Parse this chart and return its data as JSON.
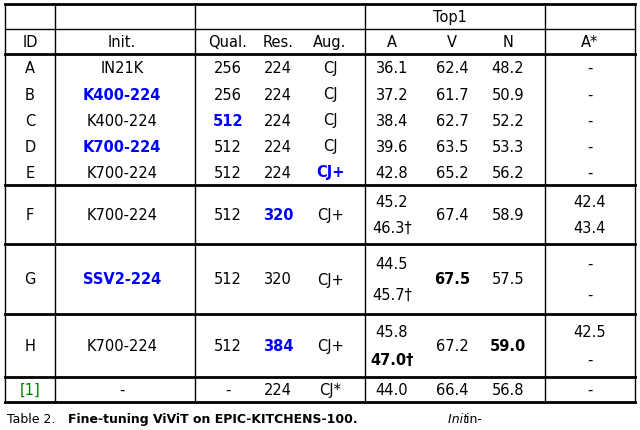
{
  "figsize": [
    6.4,
    4.31
  ],
  "dpi": 100,
  "blue": "#0000FF",
  "black": "#000000",
  "green": "#008000",
  "bg_color": "#FFFFFF",
  "rows": [
    {
      "id": "A",
      "init": "IN21K",
      "qual": "256",
      "res": "224",
      "aug": "CJ",
      "A1": "36.1",
      "V": "62.4",
      "N": "48.2",
      "As1": "-",
      "A2": null,
      "As2": null,
      "init_bold": false,
      "init_blue": false,
      "qual_bold": false,
      "qual_blue": false,
      "res_bold": false,
      "res_blue": false,
      "aug_bold": false,
      "aug_blue": false,
      "V_bold": false,
      "N_bold": false
    },
    {
      "id": "B",
      "init": "K400-224",
      "qual": "256",
      "res": "224",
      "aug": "CJ",
      "A1": "37.2",
      "V": "61.7",
      "N": "50.9",
      "As1": "-",
      "A2": null,
      "As2": null,
      "init_bold": true,
      "init_blue": true,
      "qual_bold": false,
      "qual_blue": false,
      "res_bold": false,
      "res_blue": false,
      "aug_bold": false,
      "aug_blue": false,
      "V_bold": false,
      "N_bold": false
    },
    {
      "id": "C",
      "init": "K400-224",
      "qual": "512",
      "res": "224",
      "aug": "CJ",
      "A1": "38.4",
      "V": "62.7",
      "N": "52.2",
      "As1": "-",
      "A2": null,
      "As2": null,
      "init_bold": false,
      "init_blue": false,
      "qual_bold": true,
      "qual_blue": true,
      "res_bold": false,
      "res_blue": false,
      "aug_bold": false,
      "aug_blue": false,
      "V_bold": false,
      "N_bold": false
    },
    {
      "id": "D",
      "init": "K700-224",
      "qual": "512",
      "res": "224",
      "aug": "CJ",
      "A1": "39.6",
      "V": "63.5",
      "N": "53.3",
      "As1": "-",
      "A2": null,
      "As2": null,
      "init_bold": true,
      "init_blue": true,
      "qual_bold": false,
      "qual_blue": false,
      "res_bold": false,
      "res_blue": false,
      "aug_bold": false,
      "aug_blue": false,
      "V_bold": false,
      "N_bold": false
    },
    {
      "id": "E",
      "init": "K700-224",
      "qual": "512",
      "res": "224",
      "aug": "CJ+",
      "A1": "42.8",
      "V": "65.2",
      "N": "56.2",
      "As1": "-",
      "A2": null,
      "As2": null,
      "init_bold": false,
      "init_blue": false,
      "qual_bold": false,
      "qual_blue": false,
      "res_bold": false,
      "res_blue": false,
      "aug_bold": true,
      "aug_blue": true,
      "V_bold": false,
      "N_bold": false
    },
    {
      "id": "F",
      "init": "K700-224",
      "qual": "512",
      "res": "320",
      "aug": "CJ+",
      "A1": "45.2",
      "V": "67.4",
      "N": "58.9",
      "As1": "42.4",
      "A2": "46.3†",
      "As2": "43.4",
      "init_bold": false,
      "init_blue": false,
      "qual_bold": false,
      "qual_blue": false,
      "res_bold": true,
      "res_blue": true,
      "aug_bold": false,
      "aug_blue": false,
      "V_bold": false,
      "N_bold": false
    },
    {
      "id": "G",
      "init": "SSV2-224",
      "qual": "512",
      "res": "320",
      "aug": "CJ+",
      "A1": "44.5",
      "V": "67.5",
      "N": "57.5",
      "As1": "-",
      "A2": "45.7†",
      "As2": "-",
      "init_bold": true,
      "init_blue": true,
      "qual_bold": false,
      "qual_blue": false,
      "res_bold": false,
      "res_blue": false,
      "aug_bold": false,
      "aug_blue": false,
      "V_bold": true,
      "N_bold": false
    },
    {
      "id": "H",
      "init": "K700-224",
      "qual": "512",
      "res": "384",
      "aug": "CJ+",
      "A1": "45.8",
      "V": "67.2",
      "N": "59.0",
      "As1": "42.5",
      "A2": "47.0†",
      "As2": "-",
      "init_bold": false,
      "init_blue": false,
      "qual_bold": false,
      "qual_blue": false,
      "res_bold": true,
      "res_blue": true,
      "aug_bold": false,
      "aug_blue": false,
      "V_bold": false,
      "N_bold": true,
      "A2_bold": true
    },
    {
      "id": "[1]",
      "init": "-",
      "qual": "-",
      "res": "224",
      "aug": "CJ*",
      "A1": "44.0",
      "V": "66.4",
      "N": "56.8",
      "As1": "-",
      "A2": null,
      "As2": null,
      "init_bold": false,
      "init_blue": false,
      "qual_bold": false,
      "qual_blue": false,
      "res_bold": false,
      "res_blue": false,
      "aug_bold": false,
      "aug_blue": false,
      "V_bold": false,
      "N_bold": false,
      "id_green": true
    }
  ]
}
